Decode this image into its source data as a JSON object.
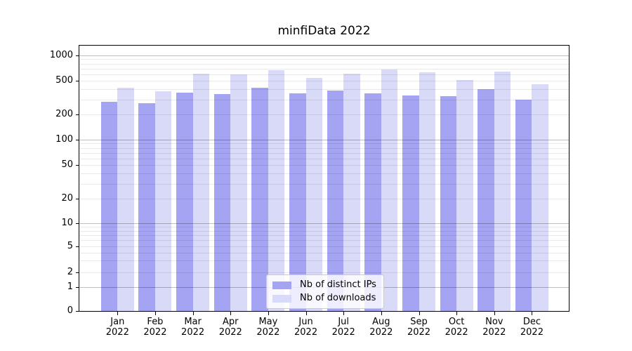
{
  "chart_data": {
    "type": "bar",
    "title": "minfiData 2022",
    "categories": [
      "Jan 2022",
      "Feb 2022",
      "Mar 2022",
      "Apr 2022",
      "May 2022",
      "Jun 2022",
      "Jul 2022",
      "Aug 2022",
      "Sep 2022",
      "Oct 2022",
      "Nov 2022",
      "Dec 2022"
    ],
    "series": [
      {
        "name": "Nb of distinct IPs",
        "color": "#a4a4f2",
        "values": [
          280,
          270,
          360,
          345,
          415,
          355,
          385,
          355,
          335,
          330,
          395,
          300
        ]
      },
      {
        "name": "Nb of downloads",
        "color": "#d9d9f8",
        "values": [
          410,
          375,
          610,
          590,
          670,
          535,
          610,
          685,
          630,
          505,
          640,
          455
        ]
      }
    ],
    "xlabel": "",
    "ylabel": "",
    "yscale": "log-like (1-2-5 tick sequence, linear segment from 0 to 1)",
    "yticks": [
      0,
      1,
      2,
      5,
      10,
      20,
      50,
      100,
      200,
      500,
      1000
    ],
    "ylim": [
      0,
      1300
    ],
    "grid": "horizontal major gridlines at decades, minor gridlines between",
    "legend_position": "lower center inside plot"
  }
}
